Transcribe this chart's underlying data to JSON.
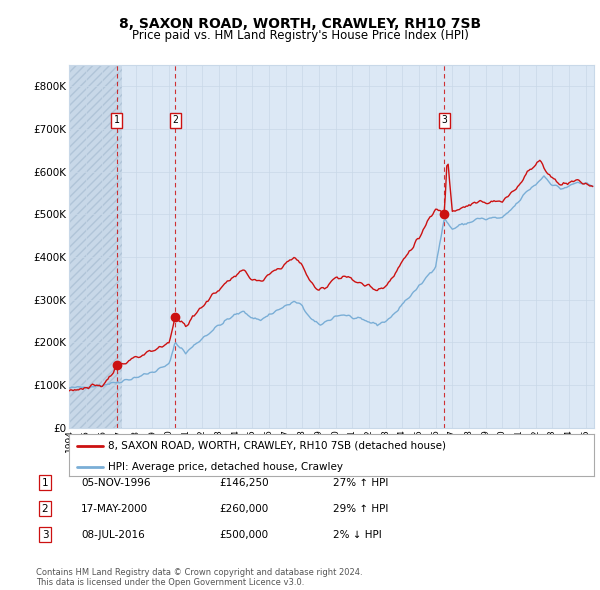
{
  "title": "8, SAXON ROAD, WORTH, CRAWLEY, RH10 7SB",
  "subtitle": "Price paid vs. HM Land Registry's House Price Index (HPI)",
  "legend_line1": "8, SAXON ROAD, WORTH, CRAWLEY, RH10 7SB (detached house)",
  "legend_line2": "HPI: Average price, detached house, Crawley",
  "footnote1": "Contains HM Land Registry data © Crown copyright and database right 2024.",
  "footnote2": "This data is licensed under the Open Government Licence v3.0.",
  "transactions": [
    {
      "num": 1,
      "date": "05-NOV-1996",
      "price": 146250,
      "hpi_diff": "27% ↑ HPI",
      "year": 1996.85
    },
    {
      "num": 2,
      "date": "17-MAY-2000",
      "price": 260000,
      "hpi_diff": "29% ↑ HPI",
      "year": 2000.37
    },
    {
      "num": 3,
      "date": "08-JUL-2016",
      "price": 500000,
      "hpi_diff": "2% ↓ HPI",
      "year": 2016.52
    }
  ],
  "hpi_color": "#7aaed6",
  "price_color": "#cc1111",
  "grid_color": "#c8d8e8",
  "background_color": "#ffffff",
  "plot_bg_color": "#dce8f5",
  "hatch_bg_color": "#c8d8e8",
  "ylim": [
    0,
    850000
  ],
  "xlim_start": 1994.0,
  "xlim_end": 2025.5
}
